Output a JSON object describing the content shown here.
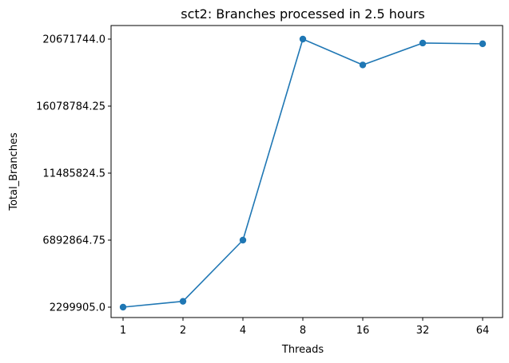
{
  "chart_data": {
    "type": "line",
    "title": "sct2: Branches processed in 2.5 hours",
    "xlabel": "Threads",
    "ylabel": "Total_Branches",
    "categories": [
      "1",
      "2",
      "4",
      "8",
      "16",
      "32",
      "64"
    ],
    "series": [
      {
        "values": [
          2299905.0,
          2700000.0,
          6892864.75,
          20671744.0,
          18900000.0,
          20400000.0,
          20350000.0
        ]
      }
    ],
    "yticks": [
      2299905.0,
      6892864.75,
      11485824.5,
      16078784.25,
      20671744.0
    ],
    "ytick_labels": [
      "2299905.0",
      "6892864.75",
      "11485824.5",
      "16078784.25",
      "20671744.0"
    ],
    "grid": false,
    "legend": "none",
    "colors": {
      "line": "#1f77b4",
      "marker": "#1f77b4",
      "axes": "#000000"
    }
  }
}
